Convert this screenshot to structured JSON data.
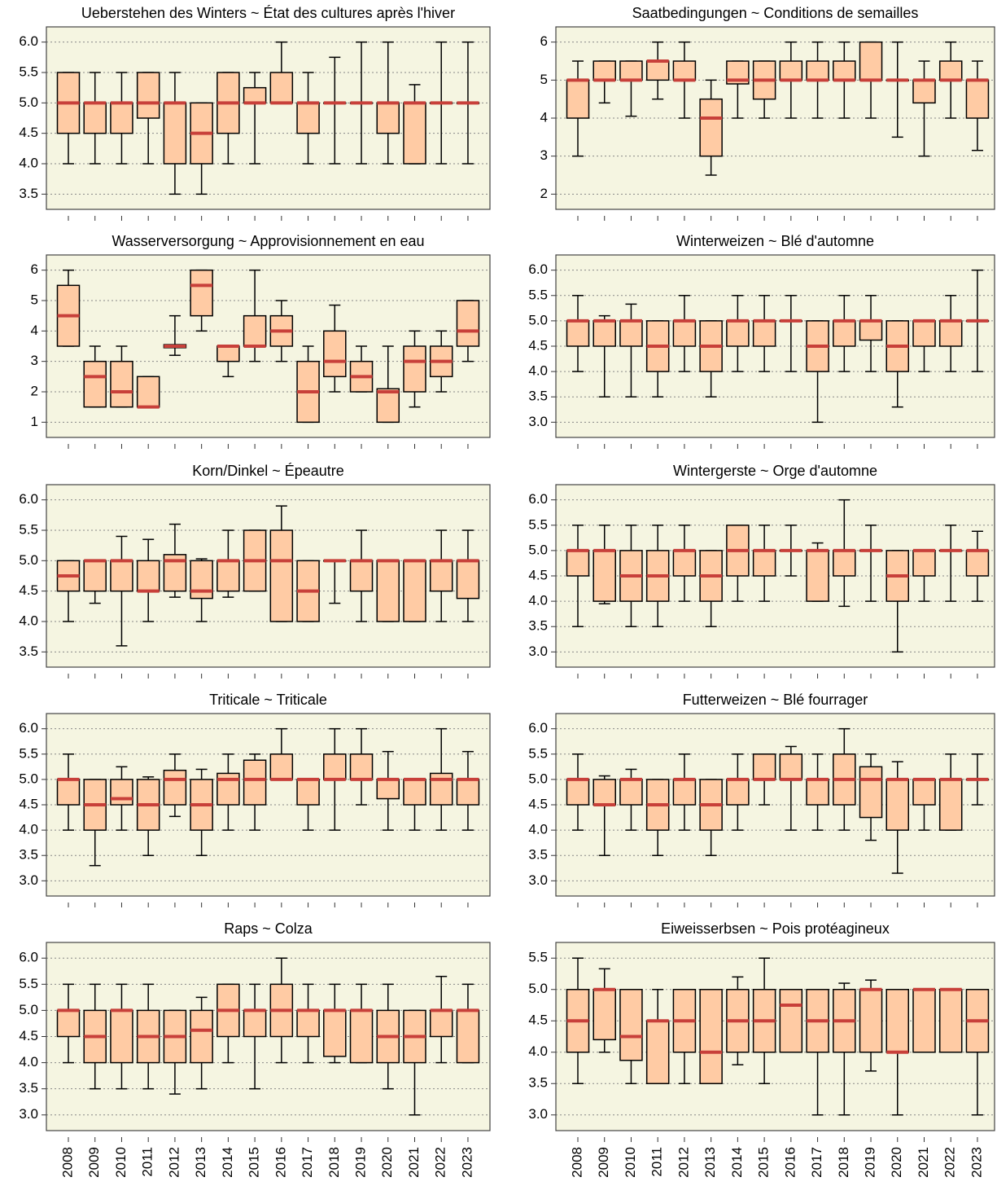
{
  "chart_data": [
    {
      "type": "box",
      "title": "Ueberstehen des Winters ~ État des cultures après l'hiver",
      "ylim": [
        3.25,
        6.25
      ],
      "yticks": [
        3.5,
        {
          "value": 4,
          "label": "4.0"
        },
        4.5,
        {
          "value": 5,
          "label": "5.0"
        },
        5.5,
        {
          "value": 6,
          "label": "6.0"
        }
      ],
      "grid": true,
      "box_color": "#ffcba4",
      "median_color": "#c8403a",
      "min": [
        4,
        4,
        4,
        4,
        3.5,
        3.5,
        4,
        4,
        5,
        4,
        4,
        4,
        4,
        4,
        4,
        4
      ],
      "q1": [
        4.5,
        4.5,
        4.5,
        4.75,
        4,
        4,
        4.5,
        5,
        5,
        4.5,
        5,
        5,
        4.5,
        4,
        5,
        5
      ],
      "median": [
        5,
        5,
        5,
        5,
        5,
        4.5,
        5,
        5,
        5,
        5,
        5,
        5,
        5,
        5,
        5,
        5
      ],
      "q3": [
        5.5,
        5,
        5,
        5.5,
        5,
        5,
        5.5,
        5.25,
        5.5,
        5,
        5,
        5,
        5,
        5,
        5,
        5
      ],
      "max": [
        5.5,
        5.5,
        5.5,
        5.5,
        5.5,
        5,
        5.5,
        5.5,
        6,
        5.5,
        5.75,
        6,
        6,
        5.3,
        6,
        6
      ]
    },
    {
      "type": "box",
      "title": "Saatbedingungen ~ Conditions de semailles",
      "ylim": [
        1.6,
        6.4
      ],
      "yticks": [
        2,
        3,
        4,
        5,
        6
      ],
      "grid": true,
      "box_color": "#ffcba4",
      "median_color": "#c8403a",
      "min": [
        3,
        4.4,
        4.05,
        4.5,
        4,
        2.5,
        4,
        4,
        4,
        4,
        4,
        4,
        3.5,
        3,
        4,
        3.15
      ],
      "q1": [
        4,
        5,
        5,
        5,
        5,
        3,
        4.9,
        4.5,
        5,
        5,
        5,
        5,
        5,
        4.4,
        5,
        4
      ],
      "median": [
        5,
        5,
        5,
        5.5,
        5,
        4,
        5,
        5,
        5,
        5,
        5,
        5,
        5,
        5,
        5,
        5
      ],
      "q3": [
        5,
        5.5,
        5.5,
        5.5,
        5.5,
        4.5,
        5.5,
        5.5,
        5.5,
        5.5,
        5.5,
        6,
        5,
        5,
        5.5,
        5
      ],
      "max": [
        5.5,
        5.5,
        5.5,
        6,
        6,
        5,
        5.5,
        5.5,
        6,
        6,
        6,
        6,
        6,
        5.5,
        6,
        5.5
      ]
    },
    {
      "type": "box",
      "title": "Wasserversorgung ~ Approvisionnement en eau",
      "ylim": [
        0.5,
        6.5
      ],
      "yticks": [
        1,
        2,
        3,
        4,
        5,
        6
      ],
      "grid": true,
      "box_color": "#ffcba4",
      "median_color": "#c8403a",
      "min": [
        3.5,
        1.5,
        1.5,
        1.5,
        3.2,
        4,
        2.5,
        3,
        3,
        1,
        2,
        2,
        1,
        1.5,
        2,
        3
      ],
      "q1": [
        3.5,
        1.5,
        1.5,
        1.5,
        3.45,
        4.5,
        3,
        3.5,
        3.5,
        1,
        2.5,
        2,
        1,
        2,
        2.5,
        3.5
      ],
      "median": [
        4.5,
        2.5,
        2,
        1.5,
        3.5,
        5.5,
        3.5,
        3.5,
        4,
        2,
        3,
        2.5,
        2,
        3,
        3,
        4
      ],
      "q3": [
        5.5,
        3,
        3,
        2.5,
        3.55,
        6,
        3.5,
        4.5,
        4.5,
        3,
        4,
        3,
        2.1,
        3.5,
        3.5,
        5
      ],
      "max": [
        6,
        3.5,
        3.5,
        2.5,
        4.5,
        6,
        3.5,
        6,
        5,
        3.5,
        4.85,
        3.5,
        3.5,
        4,
        4,
        5
      ]
    },
    {
      "type": "box",
      "title": "Winterweizen ~ Blé d'automne",
      "ylim": [
        2.7,
        6.3
      ],
      "yticks": [
        {
          "value": 3,
          "label": "3.0"
        },
        3.5,
        {
          "value": 4,
          "label": "4.0"
        },
        4.5,
        {
          "value": 5,
          "label": "5.0"
        },
        5.5,
        {
          "value": 6,
          "label": "6.0"
        }
      ],
      "grid": true,
      "box_color": "#ffcba4",
      "median_color": "#c8403a",
      "min": [
        4,
        3.5,
        3.5,
        3.5,
        4,
        3.5,
        4,
        4,
        4,
        3,
        4,
        4,
        3.3,
        4,
        4,
        4
      ],
      "q1": [
        4.5,
        4.5,
        4.5,
        4,
        4.5,
        4,
        4.5,
        4.5,
        5,
        4,
        4.5,
        4.62,
        4,
        4.5,
        4.5,
        5
      ],
      "median": [
        5,
        5,
        5,
        4.5,
        5,
        4.5,
        5,
        5,
        5,
        4.5,
        5,
        5,
        4.5,
        5,
        5,
        5
      ],
      "q3": [
        5,
        5,
        5,
        5,
        5,
        5,
        5,
        5,
        5,
        5,
        5,
        5,
        5,
        5,
        5,
        5
      ],
      "max": [
        5.5,
        5.1,
        5.33,
        5,
        5.5,
        5,
        5.5,
        5.5,
        5.5,
        5,
        5.5,
        5.5,
        5,
        5,
        5.5,
        6
      ]
    },
    {
      "type": "box",
      "title": "Korn/Dinkel ~ Épeautre",
      "ylim": [
        3.25,
        6.25
      ],
      "yticks": [
        3.5,
        {
          "value": 4,
          "label": "4.0"
        },
        4.5,
        {
          "value": 5,
          "label": "5.0"
        },
        5.5,
        {
          "value": 6,
          "label": "6.0"
        }
      ],
      "grid": true,
      "box_color": "#ffcba4",
      "median_color": "#c8403a",
      "min": [
        4,
        4.3,
        3.6,
        4,
        4.4,
        4,
        4.4,
        4.5,
        4,
        4,
        4.3,
        4,
        4,
        4,
        4,
        4
      ],
      "q1": [
        4.5,
        4.5,
        4.5,
        4.5,
        4.5,
        4.38,
        4.5,
        4.5,
        4,
        4,
        5,
        4.5,
        4,
        4,
        4.5,
        4.38
      ],
      "median": [
        4.75,
        5,
        5,
        4.5,
        5,
        4.5,
        5,
        5,
        5,
        4.5,
        5,
        5,
        5,
        5,
        5,
        5
      ],
      "q3": [
        5,
        5,
        5,
        5,
        5.1,
        5,
        5,
        5.5,
        5.5,
        5,
        5,
        5,
        5,
        5,
        5,
        5
      ],
      "max": [
        5,
        5,
        5.4,
        5.35,
        5.6,
        5.03,
        5.5,
        5.5,
        5.9,
        5,
        5,
        5.5,
        5,
        5,
        5.5,
        5.5
      ]
    },
    {
      "type": "box",
      "title": "Wintergerste ~ Orge d'automne",
      "ylim": [
        2.7,
        6.3
      ],
      "yticks": [
        {
          "value": 3,
          "label": "3.0"
        },
        3.5,
        {
          "value": 4,
          "label": "4.0"
        },
        4.5,
        {
          "value": 5,
          "label": "5.0"
        },
        5.5,
        {
          "value": 6,
          "label": "6.0"
        }
      ],
      "grid": true,
      "box_color": "#ffcba4",
      "median_color": "#c8403a",
      "min": [
        3.5,
        3.95,
        3.5,
        3.5,
        4,
        3.5,
        4,
        4,
        4.5,
        4,
        3.9,
        4,
        3,
        4,
        4,
        4
      ],
      "q1": [
        4.5,
        4,
        4,
        4,
        4.5,
        4,
        4.5,
        4.5,
        5,
        4,
        4.5,
        5,
        4,
        4.5,
        5,
        4.5
      ],
      "median": [
        5,
        5,
        4.5,
        4.5,
        5,
        4.5,
        5,
        5,
        5,
        5,
        5,
        5,
        4.5,
        5,
        5,
        5
      ],
      "q3": [
        5,
        5,
        5,
        5,
        5,
        5,
        5.5,
        5,
        5,
        5,
        5,
        5,
        5,
        5,
        5,
        5
      ],
      "max": [
        5.5,
        5.5,
        5.5,
        5.5,
        5.5,
        5,
        5.5,
        5.5,
        5.5,
        5.15,
        6,
        5.5,
        5,
        5,
        5.5,
        5.38
      ]
    },
    {
      "type": "box",
      "title": "Triticale ~ Triticale",
      "ylim": [
        2.7,
        6.3
      ],
      "yticks": [
        {
          "value": 3,
          "label": "3.0"
        },
        3.5,
        {
          "value": 4,
          "label": "4.0"
        },
        4.5,
        {
          "value": 5,
          "label": "5.0"
        },
        5.5,
        {
          "value": 6,
          "label": "6.0"
        }
      ],
      "grid": true,
      "box_color": "#ffcba4",
      "median_color": "#c8403a",
      "min": [
        4,
        3.3,
        4,
        3.5,
        4.27,
        3.5,
        4,
        4,
        5,
        4,
        4,
        4.5,
        4,
        4,
        4,
        4
      ],
      "q1": [
        4.5,
        4,
        4.5,
        4,
        4.5,
        4,
        4.5,
        4.5,
        5,
        4.5,
        5,
        5,
        4.62,
        4.5,
        4.5,
        4.5
      ],
      "median": [
        5,
        4.5,
        4.62,
        4.5,
        5,
        4.5,
        5,
        5,
        5,
        5,
        5,
        5,
        5,
        5,
        5,
        5
      ],
      "q3": [
        5,
        5,
        5,
        5,
        5.18,
        5,
        5.12,
        5.38,
        5.5,
        5,
        5.5,
        5.5,
        5,
        5,
        5.12,
        5
      ],
      "max": [
        5.5,
        5,
        5.25,
        5.05,
        5.5,
        5.2,
        5.5,
        5.5,
        6,
        5,
        6,
        6,
        5.55,
        5,
        6,
        5.55
      ]
    },
    {
      "type": "box",
      "title": "Futterweizen ~ Blé fourrager",
      "ylim": [
        2.7,
        6.3
      ],
      "yticks": [
        {
          "value": 3,
          "label": "3.0"
        },
        3.5,
        {
          "value": 4,
          "label": "4.0"
        },
        4.5,
        {
          "value": 5,
          "label": "5.0"
        },
        5.5,
        {
          "value": 6,
          "label": "6.0"
        }
      ],
      "grid": true,
      "box_color": "#ffcba4",
      "median_color": "#c8403a",
      "min": [
        4,
        3.5,
        4,
        3.5,
        4,
        3.5,
        4,
        4.5,
        4,
        4,
        4,
        3.8,
        3.15,
        4,
        4,
        4.5
      ],
      "q1": [
        4.5,
        4.5,
        4.5,
        4,
        4.5,
        4,
        4.5,
        5,
        5,
        4.5,
        4.5,
        4.25,
        4,
        4.5,
        4,
        5
      ],
      "median": [
        5,
        4.5,
        5,
        4.5,
        5,
        4.5,
        5,
        5,
        5,
        5,
        5,
        5,
        5,
        5,
        5,
        5
      ],
      "q3": [
        5,
        5,
        5,
        5,
        5,
        5,
        5,
        5.5,
        5.5,
        5,
        5.5,
        5.25,
        5,
        5,
        5,
        5
      ],
      "max": [
        5.5,
        5.07,
        5.2,
        5,
        5.5,
        5,
        5.5,
        5.5,
        5.65,
        5.5,
        6,
        5.5,
        5.35,
        5,
        5.5,
        5.5
      ]
    },
    {
      "type": "box",
      "title": "Raps ~ Colza",
      "ylim": [
        2.7,
        6.3
      ],
      "yticks": [
        {
          "value": 3,
          "label": "3.0"
        },
        3.5,
        {
          "value": 4,
          "label": "4.0"
        },
        4.5,
        {
          "value": 5,
          "label": "5.0"
        },
        5.5,
        {
          "value": 6,
          "label": "6.0"
        }
      ],
      "grid": true,
      "box_color": "#ffcba4",
      "median_color": "#c8403a",
      "categories": [
        "2008",
        "2009",
        "2010",
        "2011",
        "2012",
        "2013",
        "2014",
        "2015",
        "2016",
        "2017",
        "2018",
        "2019",
        "2020",
        "2021",
        "2022",
        "2023"
      ],
      "min": [
        4,
        3.5,
        3.5,
        3.5,
        3.4,
        3.5,
        4,
        3.5,
        4,
        4,
        4,
        4,
        3.5,
        3,
        4,
        4
      ],
      "q1": [
        4.5,
        4,
        4,
        4,
        4,
        4,
        4.5,
        4.5,
        4.5,
        4.5,
        4.12,
        4,
        4,
        4,
        4.5,
        4
      ],
      "median": [
        5,
        4.5,
        5,
        4.5,
        4.5,
        4.62,
        5,
        5,
        5,
        5,
        5,
        5,
        4.5,
        4.5,
        5,
        5
      ],
      "q3": [
        5,
        5,
        5,
        5,
        5,
        5,
        5.5,
        5,
        5.5,
        5,
        5,
        5,
        5,
        5,
        5,
        5
      ],
      "max": [
        5.5,
        5.5,
        5.5,
        5.5,
        5,
        5.25,
        5.5,
        5.5,
        6,
        5.5,
        5.5,
        5.5,
        5.5,
        5,
        5.65,
        5.5
      ]
    },
    {
      "type": "box",
      "title": "Eiweisserbsen ~ Pois protéagineux",
      "ylim": [
        2.75,
        5.75
      ],
      "yticks": [
        {
          "value": 3,
          "label": "3.0"
        },
        3.5,
        {
          "value": 4,
          "label": "4.0"
        },
        4.5,
        {
          "value": 5,
          "label": "5.0"
        },
        5.5
      ],
      "grid": true,
      "box_color": "#ffcba4",
      "median_color": "#c8403a",
      "categories": [
        "2008",
        "2009",
        "2010",
        "2011",
        "2012",
        "2013",
        "2014",
        "2015",
        "2016",
        "2017",
        "2018",
        "2019",
        "2020",
        "2021",
        "2022",
        "2023"
      ],
      "min": [
        3.5,
        4,
        3.5,
        3.5,
        3.5,
        3.5,
        3.8,
        3.5,
        4,
        3,
        3,
        3.7,
        3,
        4,
        4,
        3
      ],
      "q1": [
        4,
        4.2,
        3.87,
        3.5,
        4,
        3.5,
        4,
        4,
        4,
        4,
        4,
        4,
        4,
        4,
        4,
        4
      ],
      "median": [
        4.5,
        5,
        4.25,
        4.5,
        4.5,
        4,
        4.5,
        4.5,
        4.75,
        4.5,
        4.5,
        5,
        4,
        5,
        5,
        4.5
      ],
      "q3": [
        5,
        5,
        5,
        4.5,
        5,
        5,
        5,
        5,
        5,
        5,
        5,
        5,
        5,
        5,
        5,
        5
      ],
      "max": [
        5.5,
        5.33,
        5,
        5,
        5,
        5,
        5.2,
        5.5,
        5,
        5,
        5.1,
        5.15,
        5,
        5,
        5,
        5
      ]
    }
  ]
}
